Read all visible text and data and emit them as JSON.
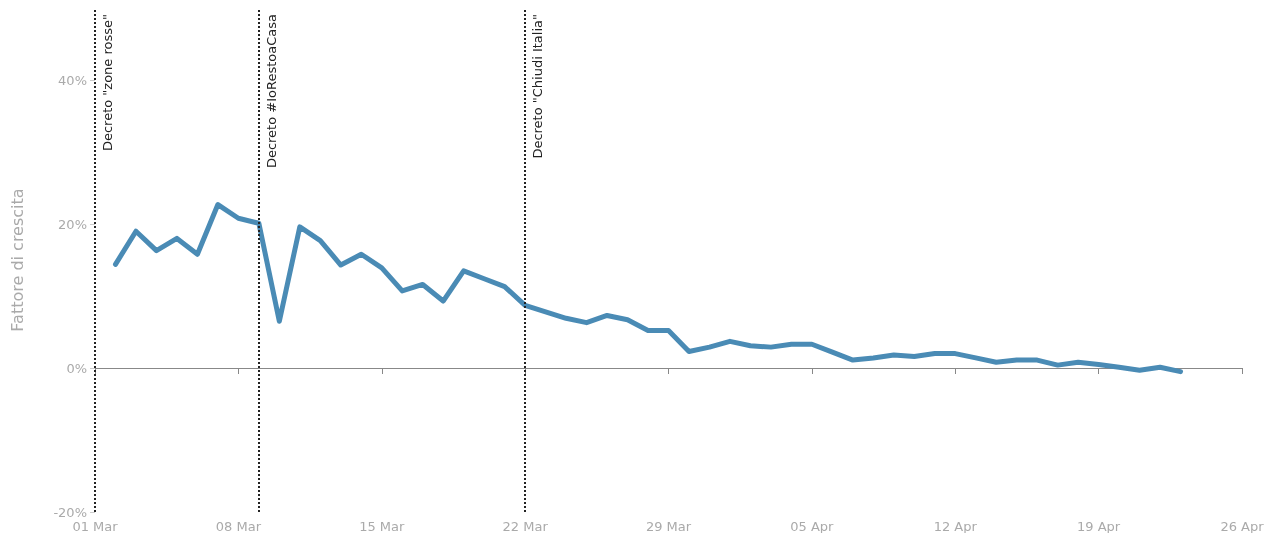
{
  "chart_data": {
    "type": "line",
    "ylabel": "Fattore di crescita",
    "x": [
      "--03-02",
      "--03-03",
      "--03-04",
      "--03-05",
      "--03-06",
      "--03-07",
      "--03-08",
      "--03-09",
      "--03-10",
      "--03-11",
      "--03-12",
      "--03-13",
      "--03-14",
      "--03-15",
      "--03-16",
      "--03-17",
      "--03-18",
      "--03-19",
      "--03-20",
      "--03-21",
      "--03-22",
      "--03-23",
      "--03-24",
      "--03-25",
      "--03-26",
      "--03-27",
      "--03-28",
      "--03-29",
      "--03-30",
      "--03-31",
      "--04-01",
      "--04-02",
      "--04-03",
      "--04-04",
      "--04-05",
      "--04-06",
      "--04-07",
      "--04-08",
      "--04-09",
      "--04-10",
      "--04-11",
      "--04-12",
      "--04-13",
      "--04-14",
      "--04-15",
      "--04-16",
      "--04-17",
      "--04-18",
      "--04-19",
      "--04-20",
      "--04-21",
      "--04-22",
      "--04-23"
    ],
    "series": [
      {
        "color": "#4a8bb5",
        "values": [
          14.4,
          19.0,
          16.3,
          18.0,
          15.8,
          22.7,
          20.8,
          20.1,
          6.5,
          19.6,
          17.7,
          14.3,
          15.8,
          13.9,
          10.7,
          11.6,
          9.3,
          13.5,
          12.4,
          11.3,
          8.7,
          7.8,
          6.9,
          6.3,
          7.3,
          6.7,
          5.2,
          5.2,
          2.3,
          2.9,
          3.7,
          3.1,
          2.9,
          3.3,
          3.3,
          2.2,
          1.1,
          1.4,
          1.8,
          1.6,
          2.0,
          2.0,
          1.4,
          0.8,
          1.1,
          1.1,
          0.4,
          0.8,
          0.5,
          0.1,
          -0.3,
          0.1,
          -0.5
        ]
      }
    ],
    "xlim": [
      "--03-01",
      "--04-26"
    ],
    "xticks": [
      {
        "value": "--03-01",
        "label": "01 Mar"
      },
      {
        "value": "--03-08",
        "label": "08 Mar"
      },
      {
        "value": "--03-15",
        "label": "15 Mar"
      },
      {
        "value": "--03-22",
        "label": "22 Mar"
      },
      {
        "value": "--03-29",
        "label": "29 Mar"
      },
      {
        "value": "--04-05",
        "label": "05 Apr"
      },
      {
        "value": "--04-12",
        "label": "12 Apr"
      },
      {
        "value": "--04-19",
        "label": "19 Apr"
      },
      {
        "value": "--04-26",
        "label": "26 Apr"
      }
    ],
    "ylim": [
      -20,
      50
    ],
    "yticks": [
      {
        "value": -20,
        "label": "-20%"
      },
      {
        "value": 0,
        "label": "0%"
      },
      {
        "value": 20,
        "label": "20%"
      },
      {
        "value": 40,
        "label": "40%"
      }
    ],
    "ref_lines": [
      {
        "axis": "x",
        "value": "--03-01",
        "label": "Decreto \"zone rosse\"",
        "color": "#222222",
        "line_style": "dotted"
      },
      {
        "axis": "x",
        "value": "--03-09",
        "label": "Decreto #IoRestoaCasa",
        "color": "#222222",
        "line_style": "dotted"
      },
      {
        "axis": "x",
        "value": "--03-22",
        "label": "Decreto \"Chiudi Italia\"",
        "color": "#222222",
        "line_style": "dotted"
      }
    ],
    "grid": false,
    "marker": "none",
    "line_style": "solid"
  }
}
